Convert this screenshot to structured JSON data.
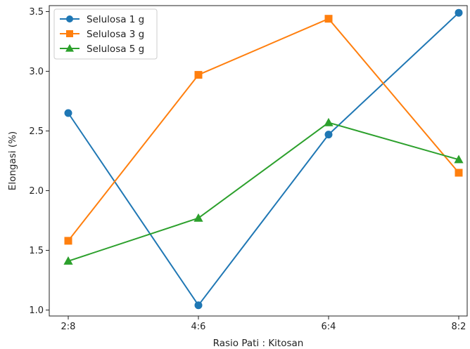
{
  "chart_data": {
    "type": "line",
    "categories": [
      "2:8",
      "4:6",
      "6:4",
      "8:2"
    ],
    "xlabel": "Rasio Pati : Kitosan",
    "ylabel": "Elongasi (%)",
    "ylim": [
      0.95,
      3.55
    ],
    "yticks": [
      "1.0",
      "1.5",
      "2.0",
      "2.5",
      "3.0",
      "3.5"
    ],
    "grid": false,
    "legend_position": "top-left",
    "series": [
      {
        "name": "Selulosa 1 g",
        "color": "#1f77b4",
        "marker": "circle",
        "values": [
          2.65,
          1.04,
          2.47,
          3.49
        ]
      },
      {
        "name": "Selulosa 3 g",
        "color": "#ff7f0e",
        "marker": "square",
        "values": [
          1.58,
          2.97,
          3.44,
          2.15
        ]
      },
      {
        "name": "Selulosa 5 g",
        "color": "#2ca02c",
        "marker": "triangle",
        "values": [
          1.41,
          1.77,
          2.57,
          2.26
        ]
      }
    ]
  }
}
